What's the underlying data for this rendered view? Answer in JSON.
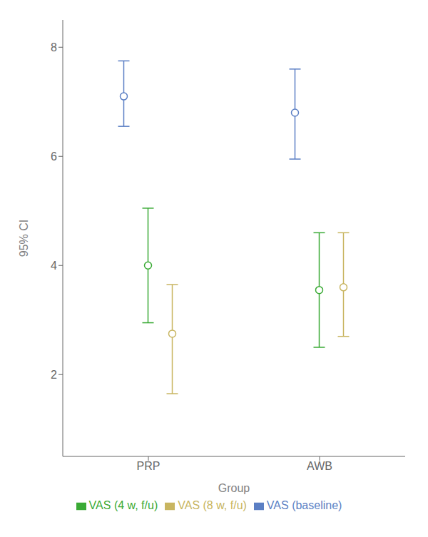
{
  "chart_data": {
    "type": "errorbar",
    "categories": [
      "PRP",
      "AWB"
    ],
    "series": [
      {
        "name": "VAS (baseline)",
        "color": "#5b7fc4",
        "values": [
          7.1,
          6.8
        ],
        "ci_low": [
          6.55,
          5.95
        ],
        "ci_high": [
          7.75,
          7.6
        ]
      },
      {
        "name": "VAS (4 w, f/u)",
        "color": "#3aaa35",
        "values": [
          4.0,
          3.55
        ],
        "ci_low": [
          2.95,
          2.5
        ],
        "ci_high": [
          5.05,
          4.6
        ]
      },
      {
        "name": "VAS (8 w, f/u)",
        "color": "#c8b560",
        "values": [
          2.75,
          3.6
        ],
        "ci_low": [
          1.65,
          2.7
        ],
        "ci_high": [
          3.65,
          4.6
        ]
      }
    ],
    "xlabel": "Group",
    "ylabel": "95% CI",
    "ylim": [
      0.5,
      8.5
    ],
    "yticks": [
      2,
      4,
      6,
      8
    ],
    "grid": false,
    "legend": "bottom",
    "marker": "circle"
  }
}
